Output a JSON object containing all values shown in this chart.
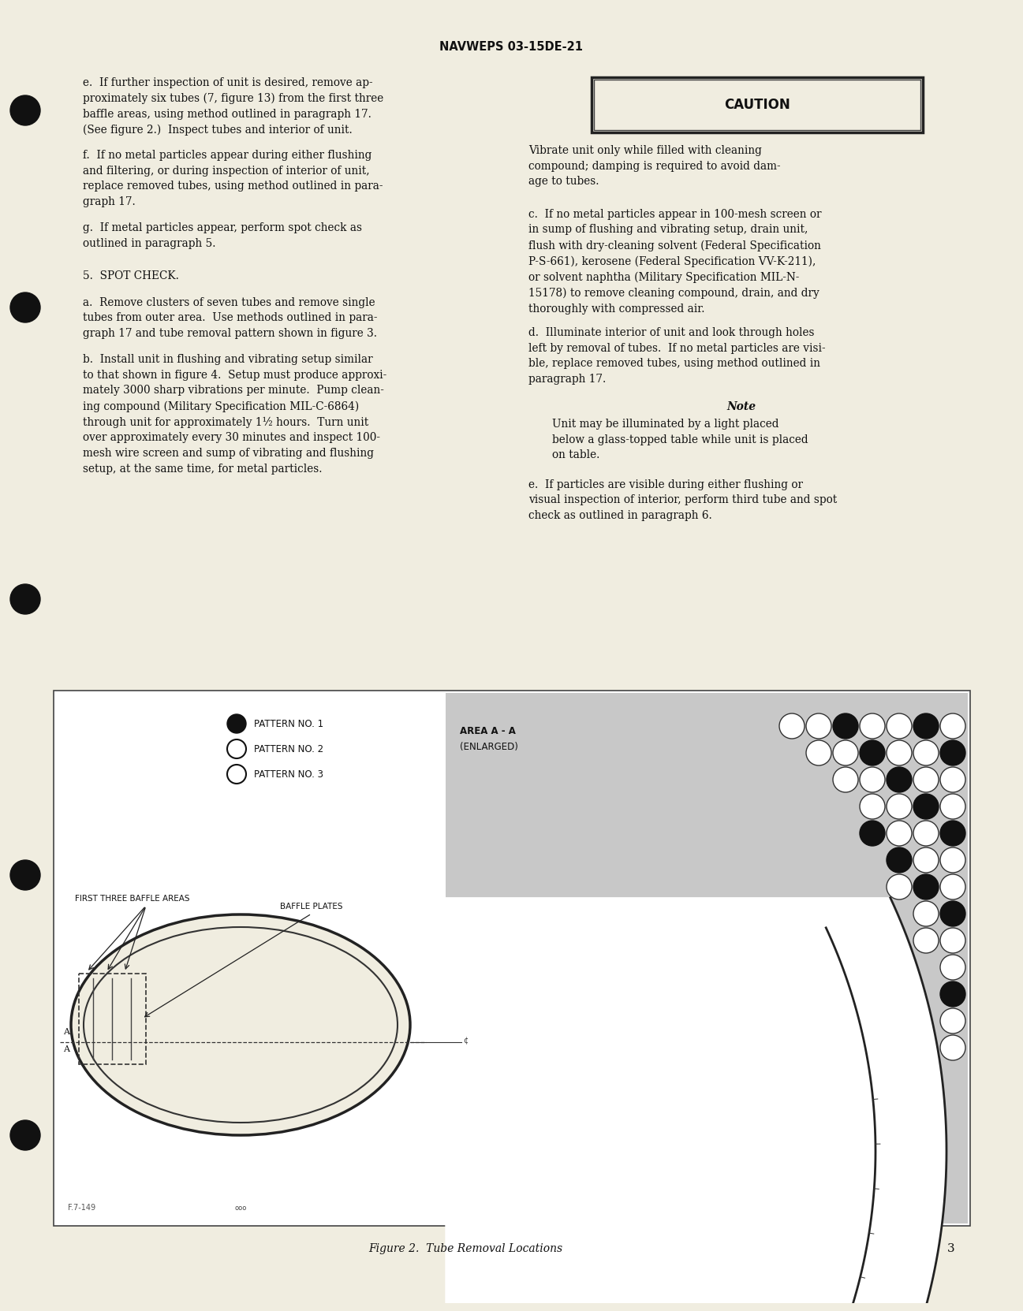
{
  "page_bg": "#f0ede0",
  "header_text": "NAVWEPS 03-15DE-21",
  "page_number": "3",
  "figure_caption": "Figure 2.  Tube Removal Locations",
  "caution_text": "Vibrate unit only while filled with cleaning\ncompound; damping is required to avoid dam-\nage to tubes.",
  "note_text": "Unit may be illuminated by a light placed\nbelow a glass-topped table while unit is placed\non table.",
  "text_e_left": "e.  If further inspection of unit is desired, remove ap-\nproximately six tubes (7, figure 13) from the first three\nbaffle areas, using method outlined in paragraph 17.\n(See figure 2.)  Inspect tubes and interior of unit.",
  "text_f_left": "f.  If no metal particles appear during either flushing\nand filtering, or during inspection of interior of unit,\nreplace removed tubes, using method outlined in para-\ngraph 17.",
  "text_g_left": "g.  If metal particles appear, perform spot check as\noutlined in paragraph 5.",
  "heading_5": "5.  SPOT CHECK.",
  "text_a_left": "a.  Remove clusters of seven tubes and remove single\ntubes from outer area.  Use methods outlined in para-\ngraph 17 and tube removal pattern shown in figure 3.",
  "text_b_left": "b.  Install unit in flushing and vibrating setup similar\nto that shown in figure 4.  Setup must produce approxi-\nmately 3000 sharp vibrations per minute.  Pump clean-\ning compound (Military Specification MIL-C-6864)\nthrough unit for approximately 1½ hours.  Turn unit\nover approximately every 30 minutes and inspect 100-\nmesh wire screen and sump of vibrating and flushing\nsetup, at the same time, for metal particles.",
  "text_c_right": "c.  If no metal particles appear in 100-mesh screen or\nin sump of flushing and vibrating setup, drain unit,\nflush with dry-cleaning solvent (Federal Specification\nP-S-661), kerosene (Federal Specification VV-K-211),\nor solvent naphtha (Military Specification MIL-N-\n15178) to remove cleaning compound, drain, and dry\nthoroughly with compressed air.",
  "text_d_right": "d.  Illuminate interior of unit and look through holes\nleft by removal of tubes.  If no metal particles are visi-\nble, replace removed tubes, using method outlined in\nparagraph 17.",
  "text_e_right": "e.  If particles are visible during either flushing or\nvisual inspection of interior, perform third tube and spot\ncheck as outlined in paragraph 6."
}
